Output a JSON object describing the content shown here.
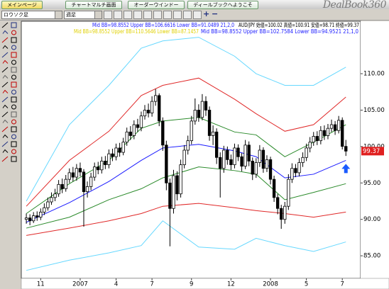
{
  "ui": {
    "tabs": [
      "メインページ",
      "チャートマルチ画面",
      "オーダーウインドー",
      "ディールブックへようこそ"
    ],
    "logo": "DealBook360",
    "toolbar": {
      "chart_type": "ロウソク足",
      "period": "週足"
    }
  },
  "chart_data": {
    "type": "candlestick",
    "annotations": [
      {
        "text": "Mid BB=98.8552 Upper BB=106.6616 Lower BB=91.0489 21,2,0",
        "color": "#2020ff"
      },
      {
        "text": "AUD/JPY 始値=100.02 高値=100.91 安値=98.71 終値=99.37",
        "color": "#000000"
      },
      {
        "text": "Mid BB=98.8552 Upper BB=110.5646 Lower BB=87.1457",
        "color": "#e0d000"
      },
      {
        "text": "Mid BB=98.8552 Upper BB=102.7584 Lower BB=94.9521 21,1,0",
        "color": "#2020ff"
      }
    ],
    "open": [
      90.0,
      90.2,
      89.8,
      90.5,
      90.3,
      91.0,
      91.6,
      92.4,
      93.0,
      93.5,
      94.8,
      94.2,
      95.5,
      96.4,
      95.8,
      97.0,
      96.5,
      93.8,
      94.5,
      95.8,
      97.2,
      96.8,
      98.0,
      97.5,
      99.0,
      98.6,
      99.8,
      99.2,
      100.6,
      102.0,
      101.5,
      103.0,
      102.6,
      104.2,
      105.0,
      104.6,
      106.2,
      107.0,
      103.5,
      100.2,
      95.0,
      91.5,
      96.0,
      93.5,
      97.5,
      99.5,
      100.8,
      103.5,
      105.0,
      104.0,
      106.2,
      105.0,
      101.5,
      102.0,
      98.5,
      97.0,
      99.5,
      98.2,
      97.5,
      99.8,
      98.6,
      97.3,
      100.2,
      98.0,
      96.2,
      97.8,
      99.5,
      97.0,
      98.2,
      95.5,
      93.0,
      91.5,
      90.0,
      91.8,
      95.5,
      97.0,
      96.4,
      97.8,
      98.5,
      99.8,
      100.6,
      101.4,
      100.8,
      102.2,
      101.5,
      102.5,
      103.0,
      102.2,
      103.6,
      100.02
    ],
    "high": [
      90.8,
      90.7,
      91.0,
      91.1,
      91.5,
      92.2,
      93.0,
      93.7,
      94.2,
      95.4,
      95.6,
      96.1,
      97.0,
      97.2,
      97.6,
      97.8,
      96.9,
      95.2,
      96.4,
      97.8,
      97.9,
      98.6,
      98.7,
      99.6,
      99.7,
      100.4,
      100.5,
      101.2,
      102.6,
      102.8,
      103.6,
      103.8,
      104.8,
      105.7,
      105.9,
      106.9,
      107.9,
      107.3,
      104.0,
      100.8,
      95.6,
      96.8,
      96.6,
      98.2,
      100.2,
      101.5,
      104.2,
      106.6,
      105.8,
      107.2,
      106.9,
      105.5,
      102.9,
      102.5,
      99.2,
      100.1,
      100.0,
      98.9,
      100.4,
      100.3,
      99.1,
      100.9,
      100.7,
      98.5,
      98.4,
      100.2,
      99.9,
      98.8,
      98.6,
      96.0,
      93.5,
      92.0,
      92.4,
      96.2,
      97.7,
      97.6,
      98.4,
      99.2,
      100.4,
      101.3,
      102.0,
      102.1,
      102.8,
      102.9,
      103.1,
      103.7,
      103.5,
      104.2,
      104.0,
      100.91
    ],
    "low": [
      89.4,
      89.2,
      89.5,
      89.8,
      89.9,
      90.6,
      91.2,
      92.0,
      92.5,
      93.1,
      93.6,
      93.8,
      95.0,
      95.2,
      95.3,
      95.9,
      89.0,
      93.0,
      94.0,
      95.3,
      96.2,
      96.3,
      96.9,
      97.0,
      98.0,
      98.1,
      98.6,
      98.8,
      100.1,
      100.9,
      101.0,
      102.0,
      102.1,
      103.7,
      104.0,
      104.1,
      105.6,
      102.8,
      99.4,
      94.0,
      86.3,
      90.8,
      92.6,
      93.0,
      97.0,
      98.9,
      100.3,
      103.0,
      103.4,
      103.6,
      104.2,
      100.8,
      100.2,
      97.6,
      93.0,
      96.4,
      97.5,
      96.8,
      97.0,
      98.0,
      96.6,
      96.9,
      97.3,
      95.4,
      95.7,
      97.2,
      96.4,
      96.5,
      94.8,
      92.4,
      90.7,
      88.7,
      89.4,
      91.3,
      95.0,
      95.8,
      95.9,
      97.2,
      98.0,
      99.2,
      100.1,
      100.2,
      100.3,
      100.9,
      101.0,
      102.0,
      101.6,
      101.8,
      99.6,
      98.71
    ],
    "close": [
      90.2,
      89.8,
      90.5,
      90.3,
      91.0,
      91.6,
      92.4,
      93.0,
      93.5,
      94.8,
      94.2,
      95.5,
      96.4,
      95.8,
      97.0,
      96.5,
      93.8,
      94.5,
      95.8,
      97.2,
      96.8,
      98.0,
      97.5,
      99.0,
      98.6,
      99.8,
      99.2,
      100.6,
      102.0,
      101.5,
      103.0,
      102.6,
      104.2,
      105.0,
      104.6,
      106.2,
      107.0,
      103.5,
      100.2,
      95.0,
      91.5,
      96.0,
      93.5,
      97.5,
      99.5,
      100.8,
      103.5,
      105.0,
      104.0,
      106.2,
      105.0,
      101.5,
      102.0,
      98.5,
      97.0,
      99.5,
      98.2,
      97.5,
      99.8,
      98.6,
      97.3,
      100.2,
      98.0,
      96.2,
      97.8,
      99.5,
      97.0,
      98.2,
      95.5,
      93.0,
      91.5,
      90.0,
      91.8,
      95.5,
      97.0,
      96.4,
      97.8,
      98.5,
      99.8,
      100.6,
      101.4,
      100.8,
      102.2,
      101.5,
      102.5,
      103.0,
      102.2,
      103.6,
      100.02,
      99.37
    ],
    "up_color": "#ffffff",
    "down_color": "#000000",
    "series": [
      {
        "color": "#66d8ff",
        "x": [
          0,
          12,
          23,
          32,
          38,
          48,
          58,
          64,
          72,
          80,
          89
        ],
        "values": [
          92.5,
          103,
          108.4,
          113.5,
          114.5,
          115,
          112.4,
          110,
          108.4,
          108.4,
          110.9
        ]
      },
      {
        "color": "#66d8ff",
        "x": [
          0,
          12,
          23,
          32,
          38,
          48,
          58,
          64,
          72,
          80,
          89
        ],
        "values": [
          83,
          84.4,
          85.4,
          86.4,
          89.8,
          86.2,
          85.9,
          87.4,
          86.4,
          85.6,
          86.9
        ]
      },
      {
        "color": "#e02828",
        "x": [
          0,
          12,
          23,
          32,
          38,
          48,
          58,
          64,
          72,
          80,
          89
        ],
        "values": [
          91.8,
          98.1,
          102.1,
          107,
          108.4,
          109.4,
          106.5,
          104.5,
          102.1,
          103,
          106.8
        ]
      },
      {
        "color": "#e02828",
        "x": [
          0,
          12,
          23,
          32,
          38,
          48,
          58,
          64,
          72,
          80,
          89
        ],
        "values": [
          87.8,
          88.8,
          89.8,
          90.8,
          91.8,
          92.2,
          91.6,
          91.2,
          90.8,
          90.3,
          91
        ]
      },
      {
        "color": "#2a8a2a",
        "x": [
          0,
          12,
          23,
          32,
          38,
          48,
          58,
          64,
          72,
          80,
          89
        ],
        "values": [
          90.8,
          94.9,
          98.1,
          102.5,
          103.5,
          104,
          102,
          101.6,
          98.6,
          100.6,
          103
        ]
      },
      {
        "color": "#2a8a2a",
        "x": [
          0,
          12,
          23,
          32,
          38,
          48,
          58,
          64,
          72,
          80,
          89
        ],
        "values": [
          88.8,
          90.3,
          92.7,
          94.2,
          95.7,
          97.2,
          96.7,
          96.2,
          92.7,
          93.7,
          94.9
        ]
      },
      {
        "color": "#1a1aff",
        "x": [
          0,
          12,
          23,
          32,
          38,
          48,
          58,
          64,
          72,
          80,
          89
        ],
        "values": [
          89.6,
          92.3,
          95.2,
          98.1,
          99.8,
          100.3,
          99.4,
          98.6,
          95.7,
          96.2,
          98.1
        ]
      }
    ],
    "xlim": [
      -1.4,
      93.1
    ],
    "xticks": [
      {
        "value": 4,
        "label": "11"
      },
      {
        "value": 15,
        "label": "2007"
      },
      {
        "value": 25,
        "label": "4"
      },
      {
        "value": 35,
        "label": "7"
      },
      {
        "value": 46,
        "label": "9"
      },
      {
        "value": 57,
        "label": "12"
      },
      {
        "value": 68,
        "label": "2008"
      },
      {
        "value": 78,
        "label": "5"
      },
      {
        "value": 88,
        "label": "7"
      }
    ],
    "ylim": [
      81.9,
      117.2
    ],
    "yticks": [
      {
        "value": 85,
        "label": "85.00"
      },
      {
        "value": 90,
        "label": "90.00"
      },
      {
        "value": 95,
        "label": "95.00"
      },
      {
        "value": 100,
        "label": "100.00"
      },
      {
        "value": 105,
        "label": "105.00"
      },
      {
        "value": 110,
        "label": "110.00"
      }
    ],
    "last_price_color": "#e02020",
    "grid": false
  }
}
